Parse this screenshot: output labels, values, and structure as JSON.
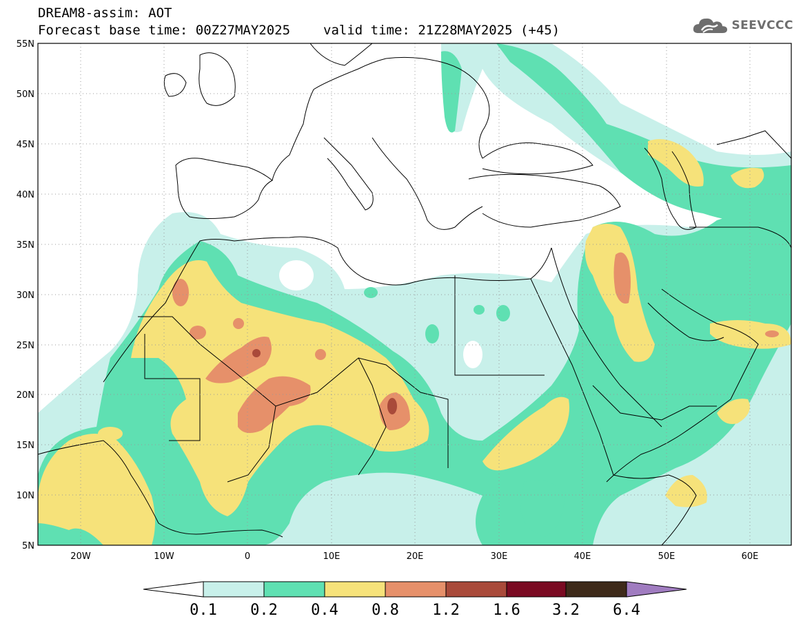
{
  "header": {
    "title_line1": "DREAM8-assim: AOT",
    "base_time": "Forecast base time: 00Z27MAY2025",
    "valid_time": "valid time: 21Z28MAY2025 (+45)"
  },
  "logo": {
    "text": "SEEVCCC",
    "icon": "cloud-logo-icon"
  },
  "map": {
    "lat_labels": [
      "55N",
      "50N",
      "45N",
      "40N",
      "35N",
      "30N",
      "25N",
      "20N",
      "15N",
      "10N",
      "5N"
    ],
    "lon_labels": [
      "20W",
      "10W",
      "0",
      "10E",
      "20E",
      "30E",
      "40E",
      "50E",
      "60E"
    ],
    "lon_range": [
      -25,
      65
    ],
    "lat_range": [
      5,
      55
    ]
  },
  "colorbar": {
    "colors": [
      "#ffffff",
      "#c8f0ea",
      "#5fe0b2",
      "#f6e27a",
      "#e6906a",
      "#a94a3a",
      "#7a0a22",
      "#3e2a1a",
      "#a07cc0"
    ],
    "labels": [
      "0.1",
      "0.2",
      "0.4",
      "0.8",
      "1.2",
      "1.6",
      "3.2",
      "6.4"
    ]
  }
}
